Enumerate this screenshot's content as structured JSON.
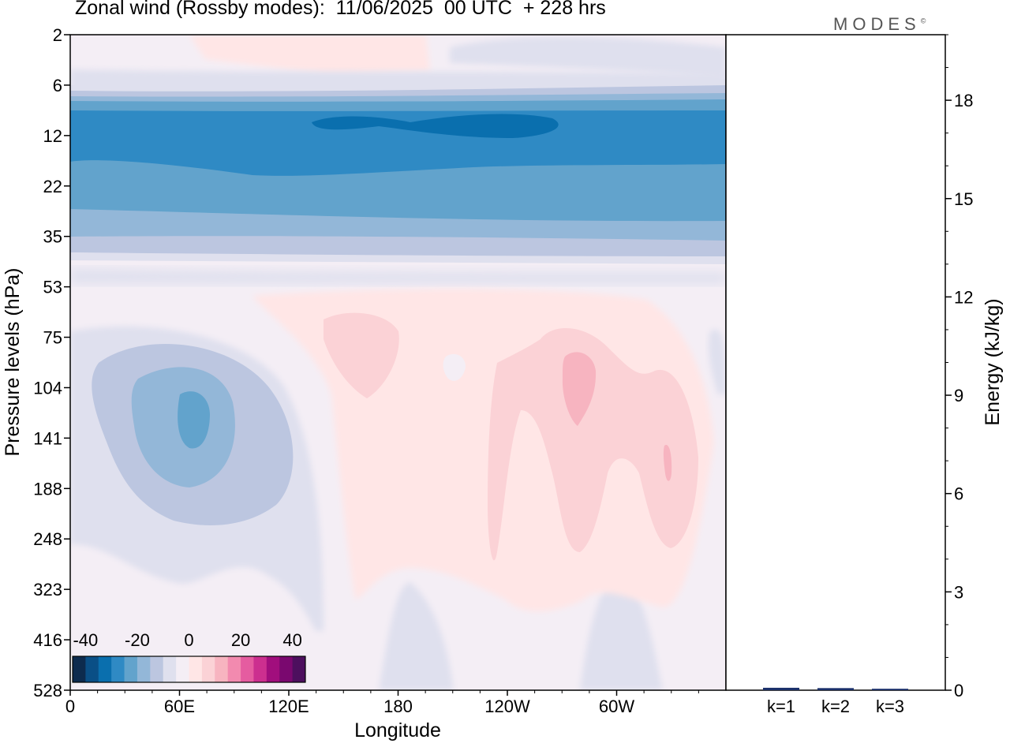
{
  "header": {
    "title": "Zonal wind (Rossby modes):  11/06/2025  00 UTC  + 228 hrs",
    "brand": "MODES",
    "brand_mark": "©"
  },
  "colors": {
    "scale": [
      "#0d2b4e",
      "#0a4f86",
      "#0a6fae",
      "#2f8ac4",
      "#62a3cc",
      "#93b7d8",
      "#bcc6e0",
      "#dfe0ee",
      "#f4eef5",
      "#ffe6e6",
      "#fbd2d6",
      "#f7b4c0",
      "#f28aaf",
      "#e55ca0",
      "#cc2f8f",
      "#a10e7d",
      "#7a086f",
      "#4d0f5e"
    ],
    "frame": "#000000",
    "bar_fill": "#1a2f6a"
  },
  "chart_data": [
    {
      "type": "heatmap",
      "title": "Zonal wind (Rossby modes):  11/06/2025  00 UTC  + 228 hrs",
      "xlabel": "Longitude",
      "ylabel": "Pressure levels (hPa)",
      "x_ticks": [
        "0",
        "60E",
        "120E",
        "180",
        "120W",
        "60W"
      ],
      "y_ticks": [
        "2",
        "6",
        "12",
        "22",
        "35",
        "53",
        "75",
        "104",
        "141",
        "188",
        "248",
        "323",
        "416",
        "528"
      ],
      "colorbar": {
        "tick_labels": [
          "-40",
          "-20",
          "0",
          "20",
          "40"
        ],
        "range": [
          -45,
          45
        ],
        "step": 5
      },
      "fields": [
        {
          "region": "stratosphere 9-14 hPa, all longitudes",
          "value": -28
        },
        {
          "region": "core 10-13 hPa, 135E-180 and 150W-100W",
          "value": -33
        },
        {
          "region": "22-35 hPa band",
          "value": -18
        },
        {
          "region": "40-53 hPa band",
          "value": -7
        },
        {
          "region": "center near 65E, 141 hPa",
          "value": -23
        },
        {
          "region": "75-188 hPa, 150E-170E",
          "value": 8
        },
        {
          "region": "100-190 hPa, 110W-60W",
          "value": 10
        },
        {
          "region": "near 90W, 104 hPa",
          "value": 14
        }
      ]
    },
    {
      "type": "bar",
      "ylabel": "Energy (kJ/kg)",
      "categories": [
        "k=1",
        "k=2",
        "k=3"
      ],
      "values": [
        0.05,
        0.04,
        0.02
      ],
      "ylim": [
        0,
        20
      ],
      "y_ticks": [
        "0",
        "3",
        "6",
        "9",
        "12",
        "15",
        "18"
      ]
    }
  ]
}
